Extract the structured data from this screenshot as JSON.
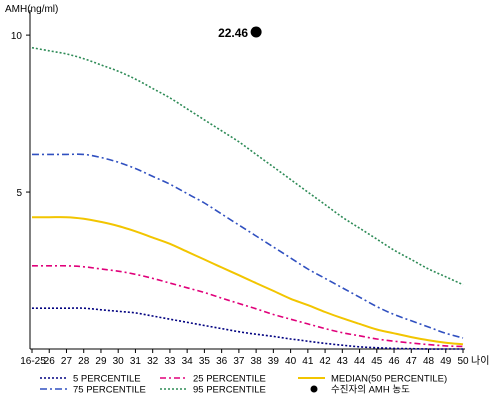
{
  "chart_data": {
    "type": "line",
    "ylabel": "AMH(ng/ml)",
    "xlabel": "나이",
    "ylim": [
      0,
      10.8
    ],
    "yticks": [
      5,
      10
    ],
    "categories": [
      "16-25",
      "26",
      "27",
      "28",
      "29",
      "30",
      "31",
      "32",
      "33",
      "34",
      "35",
      "36",
      "37",
      "38",
      "39",
      "40",
      "41",
      "42",
      "43",
      "44",
      "45",
      "46",
      "47",
      "48",
      "49",
      "50"
    ],
    "series": [
      {
        "name": "5 PERCENTILE",
        "color": "#000080",
        "dash": "2,2",
        "values": [
          1.3,
          1.3,
          1.3,
          1.3,
          1.25,
          1.2,
          1.15,
          1.05,
          0.95,
          0.85,
          0.75,
          0.65,
          0.55,
          0.47,
          0.4,
          0.32,
          0.25,
          0.18,
          0.12,
          0.07,
          0.04,
          0.02,
          0.01,
          0.0,
          0.0,
          0.0
        ]
      },
      {
        "name": "25 PERCENTILE",
        "color": "#e0007a",
        "dash": "6,3,2,3",
        "values": [
          2.65,
          2.65,
          2.65,
          2.62,
          2.55,
          2.48,
          2.38,
          2.25,
          2.1,
          1.95,
          1.8,
          1.62,
          1.45,
          1.28,
          1.1,
          0.95,
          0.8,
          0.65,
          0.52,
          0.42,
          0.32,
          0.25,
          0.19,
          0.14,
          0.1,
          0.08
        ]
      },
      {
        "name": "MEDIAN(50 PERCENTILE)",
        "color": "#f2c500",
        "dash": "",
        "values": [
          4.2,
          4.2,
          4.2,
          4.15,
          4.05,
          3.92,
          3.75,
          3.55,
          3.35,
          3.1,
          2.85,
          2.6,
          2.35,
          2.1,
          1.85,
          1.6,
          1.4,
          1.18,
          0.98,
          0.8,
          0.62,
          0.5,
          0.38,
          0.28,
          0.2,
          0.15
        ]
      },
      {
        "name": "75 PERCENTILE",
        "color": "#3050c0",
        "dash": "7,3,2,3",
        "values": [
          6.2,
          6.2,
          6.2,
          6.2,
          6.1,
          5.95,
          5.75,
          5.5,
          5.25,
          4.95,
          4.65,
          4.3,
          3.95,
          3.6,
          3.25,
          2.9,
          2.55,
          2.25,
          1.95,
          1.65,
          1.35,
          1.1,
          0.9,
          0.7,
          0.5,
          0.35
        ]
      },
      {
        "name": "95 PERCENTILE",
        "color": "#2e8b57",
        "dash": "2,2",
        "values": [
          9.6,
          9.5,
          9.4,
          9.25,
          9.05,
          8.85,
          8.6,
          8.3,
          8.0,
          7.65,
          7.3,
          6.95,
          6.6,
          6.2,
          5.8,
          5.4,
          5.0,
          4.6,
          4.2,
          3.85,
          3.5,
          3.15,
          2.85,
          2.55,
          2.3,
          2.05
        ]
      }
    ],
    "highlight": {
      "label": "22.46",
      "name": "수진자의 AMH 농도",
      "x": "38",
      "y": 10.1,
      "color": "#000000"
    },
    "legend_placement": "bottom",
    "grid": false
  }
}
